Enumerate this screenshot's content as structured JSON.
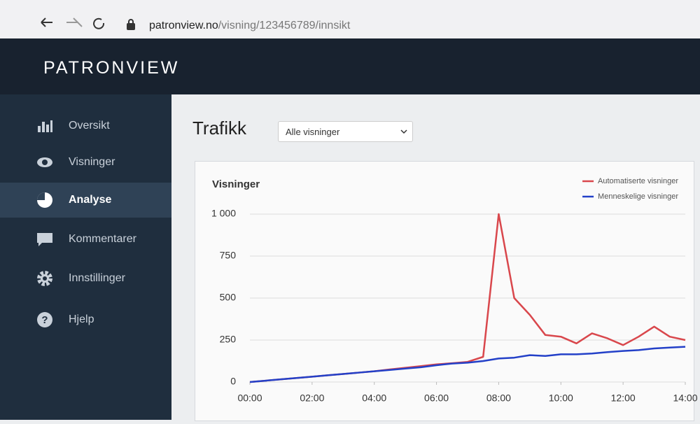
{
  "browser": {
    "url_domain": "patronview.no",
    "url_path": "/visning/123456789/innsikt"
  },
  "header": {
    "brand": "PATRONVIEW"
  },
  "nav": {
    "items": [
      "Oversikt",
      "Visninger",
      "Analyse",
      "Kommentarer",
      "Innstillinger",
      "Hjelp"
    ]
  },
  "page": {
    "title": "Trafikk",
    "filter": "Alle visninger"
  },
  "chart_data": {
    "type": "line",
    "title": "Visninger",
    "x": [
      0,
      0.5,
      1,
      1.5,
      2,
      2.5,
      3,
      3.5,
      4,
      4.5,
      5,
      5.5,
      6,
      6.5,
      7,
      7.5,
      8,
      8.5,
      9,
      9.5,
      10,
      10.5,
      11,
      11.5,
      12,
      12.5,
      13,
      13.5,
      14
    ],
    "series": [
      {
        "name": "Automatiserte visninger",
        "color": "#d9474c",
        "values": [
          0,
          8,
          16,
          24,
          32,
          40,
          48,
          56,
          64,
          75,
          85,
          95,
          105,
          112,
          120,
          150,
          1000,
          500,
          400,
          280,
          270,
          230,
          290,
          260,
          220,
          270,
          330,
          270,
          250
        ]
      },
      {
        "name": "Menneskelige visninger",
        "color": "#2340c8",
        "values": [
          0,
          8,
          16,
          24,
          32,
          40,
          48,
          56,
          64,
          72,
          80,
          88,
          100,
          110,
          115,
          125,
          140,
          145,
          160,
          155,
          165,
          165,
          170,
          178,
          185,
          190,
          200,
          205,
          210
        ]
      }
    ],
    "xlim": [
      0,
      14
    ],
    "xticks": [
      {
        "value": 0,
        "label": "00:00"
      },
      {
        "value": 2,
        "label": "02:00"
      },
      {
        "value": 4,
        "label": "04:00"
      },
      {
        "value": 6,
        "label": "06:00"
      },
      {
        "value": 8,
        "label": "08:00"
      },
      {
        "value": 10,
        "label": "10:00"
      },
      {
        "value": 12,
        "label": "12:00"
      },
      {
        "value": 14,
        "label": "14:00"
      }
    ],
    "ylim": [
      0,
      1000
    ],
    "yticks": [
      0,
      250,
      500,
      750,
      {
        "value": 1000,
        "label": "1 000"
      }
    ],
    "grid": true,
    "legend": "top-right"
  }
}
